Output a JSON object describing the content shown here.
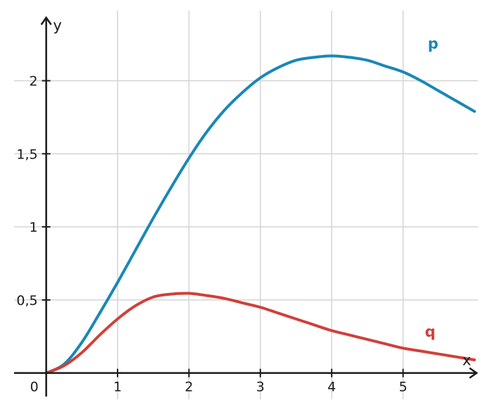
{
  "chart_data": {
    "type": "line",
    "x_label": "x",
    "y_label": "y",
    "origin_label": "0",
    "xlim": [
      -0.45,
      6.05
    ],
    "ylim": [
      -0.18,
      2.48
    ],
    "x_ticks": [
      1,
      2,
      3,
      4,
      5
    ],
    "x_tick_labels": [
      "1",
      "2",
      "3",
      "4",
      "5"
    ],
    "y_ticks": [
      0.5,
      1,
      1.5,
      2
    ],
    "y_tick_labels": [
      "0,5",
      "1",
      "1,5",
      "2"
    ],
    "grid": true,
    "series": [
      {
        "name": "p",
        "color": "#1a87b8",
        "x": [
          0,
          0.25,
          0.5,
          0.75,
          1,
          1.25,
          1.5,
          1.75,
          2,
          2.25,
          2.5,
          2.75,
          3,
          3.25,
          3.5,
          3.75,
          4,
          4.25,
          4.5,
          4.75,
          5,
          5.25,
          5.5,
          5.75,
          6
        ],
        "y": [
          0,
          0.06,
          0.21,
          0.41,
          0.62,
          0.84,
          1.06,
          1.27,
          1.47,
          1.65,
          1.8,
          1.92,
          2.02,
          2.09,
          2.14,
          2.16,
          2.17,
          2.16,
          2.14,
          2.1,
          2.06,
          2.0,
          1.93,
          1.86,
          1.79
        ]
      },
      {
        "name": "q",
        "color": "#d0403a",
        "x": [
          0,
          0.25,
          0.5,
          0.75,
          1,
          1.25,
          1.5,
          1.75,
          2,
          2.25,
          2.5,
          2.75,
          3,
          3.25,
          3.5,
          3.75,
          4,
          4.25,
          4.5,
          4.75,
          5,
          5.25,
          5.5,
          5.75,
          6
        ],
        "y": [
          0,
          0.05,
          0.14,
          0.26,
          0.37,
          0.46,
          0.52,
          0.54,
          0.545,
          0.53,
          0.51,
          0.48,
          0.45,
          0.41,
          0.37,
          0.33,
          0.29,
          0.26,
          0.23,
          0.2,
          0.17,
          0.15,
          0.13,
          0.11,
          0.09
        ]
      }
    ]
  }
}
